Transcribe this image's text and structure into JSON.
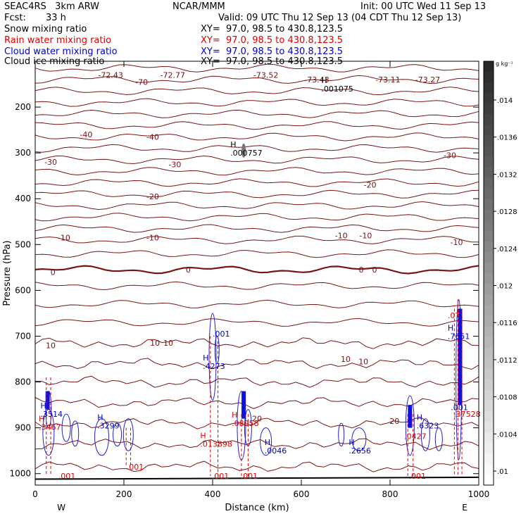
{
  "header": {
    "model": "SEAC4RS   3km ARW",
    "org": "NCAR/MMM",
    "init": "Init: 00 UTC Wed 11 Sep 13",
    "fcst_label": "Fcst:",
    "fcst_value": "33 h",
    "valid": "Valid: 09 UTC Thu 12 Sep 13 (04 CDT Thu 12 Sep 13)"
  },
  "fields": [
    {
      "name": "Snow mixing ratio",
      "xy": "XY=  97.0, 98.5 to 430.8,123.5",
      "color": "#000000"
    },
    {
      "name": "Rain water mixing ratio",
      "xy": "XY=  97.0, 98.5 to 430.8,123.5",
      "color": "#e00000"
    },
    {
      "name": "Cloud water mixing ratio",
      "xy": "XY=  97.0, 98.5 to 430.8,123.5",
      "color": "#0000d0"
    },
    {
      "name": "Cloud ice mixing ratio",
      "xy": "XY=  97.0, 98.5 to 430.8,123.5",
      "color": "#000000"
    }
  ],
  "colorbar": {
    "unit": "g kg⁻¹",
    "labels": [
      ".014",
      ".0136",
      ".0132",
      ".0128",
      ".0124",
      ".012",
      ".0116",
      ".0112",
      ".0108",
      ".0104",
      ".01"
    ]
  },
  "chart_data": {
    "type": "contour",
    "xlabel": "Distance (km)",
    "ylabel": "Pressure (hPa)",
    "xlim": [
      0,
      1000
    ],
    "ylim": [
      1025,
      100
    ],
    "x_ticks": [
      0,
      200,
      400,
      600,
      800,
      1000
    ],
    "y_ticks": [
      200,
      300,
      400,
      500,
      600,
      700,
      800,
      900,
      1000
    ],
    "x_end_labels": {
      "left": "W",
      "right": "E"
    },
    "temperature_labels": [
      {
        "text": "-72.43",
        "x": 170,
        "p": 130
      },
      {
        "text": "-70",
        "x": 240,
        "p": 145
      },
      {
        "text": "-72.77",
        "x": 310,
        "p": 130
      },
      {
        "text": "-73.52",
        "x": 520,
        "p": 130
      },
      {
        "text": "-73.43",
        "x": 635,
        "p": 140
      },
      {
        "text": "-73.11",
        "x": 795,
        "p": 140
      },
      {
        "text": "-73.27",
        "x": 885,
        "p": 140
      },
      {
        "text": "-40",
        "x": 115,
        "p": 260
      },
      {
        "text": "-40",
        "x": 265,
        "p": 265
      },
      {
        "text": "-30",
        "x": 35,
        "p": 320
      },
      {
        "text": "-30",
        "x": 315,
        "p": 325
      },
      {
        "text": "-30",
        "x": 935,
        "p": 305
      },
      {
        "text": "-20",
        "x": 265,
        "p": 395
      },
      {
        "text": "-20",
        "x": 755,
        "p": 370
      },
      {
        "text": "-10",
        "x": 65,
        "p": 485
      },
      {
        "text": "-10",
        "x": 265,
        "p": 485
      },
      {
        "text": "-10",
        "x": 690,
        "p": 480
      },
      {
        "text": "-10",
        "x": 745,
        "p": 480
      },
      {
        "text": "-10",
        "x": 950,
        "p": 495
      },
      {
        "text": "0",
        "x": 40,
        "p": 560
      },
      {
        "text": "0",
        "x": 345,
        "p": 555
      },
      {
        "text": "0",
        "x": 735,
        "p": 555
      },
      {
        "text": "0",
        "x": 765,
        "p": 555
      },
      {
        "text": "10",
        "x": 35,
        "p": 720
      },
      {
        "text": "10",
        "x": 270,
        "p": 715
      },
      {
        "text": "10",
        "x": 300,
        "p": 715
      },
      {
        "text": "10",
        "x": 700,
        "p": 750
      },
      {
        "text": "10",
        "x": 740,
        "p": 755
      },
      {
        "text": "20",
        "x": 500,
        "p": 880
      },
      {
        "text": "20",
        "x": 810,
        "p": 885
      }
    ],
    "extrema": [
      {
        "mark": "H",
        "value": ".001075",
        "x": 645,
        "p": 160,
        "color": "#000000"
      },
      {
        "mark": "H",
        "value": ".000757",
        "x": 440,
        "p": 300,
        "color": "#000000"
      },
      {
        "mark": "H",
        "value": ".3514",
        "x": 12,
        "p": 870,
        "color": "#0000d0"
      },
      {
        "mark": "H",
        "value": ".3299",
        "x": 140,
        "p": 895,
        "color": "#0000d0"
      },
      {
        "mark": "H",
        "value": ".4273",
        "x": 378,
        "p": 765,
        "color": "#0000d0"
      },
      {
        "mark": "",
        "value": ".001",
        "x": 400,
        "p": 695,
        "color": "#0000d0"
      },
      {
        "mark": "H",
        "value": ".08958",
        "x": 443,
        "p": 890,
        "color": "#e00000"
      },
      {
        "mark": "H",
        "value": ".0046",
        "x": 517,
        "p": 950,
        "color": "#0000d0"
      },
      {
        "mark": "H",
        "value": ".2656",
        "x": 707,
        "p": 950,
        "color": "#0000d0"
      },
      {
        "mark": "H",
        "value": ".6323",
        "x": 860,
        "p": 895,
        "color": "#0000d0"
      },
      {
        "mark": "H",
        "value": ".7651",
        "x": 930,
        "p": 700,
        "color": "#0000d0"
      },
      {
        "mark": "",
        "value": ".07",
        "x": 930,
        "p": 655,
        "color": "#e00000"
      },
      {
        "mark": "",
        "value": ".001",
        "x": 937,
        "p": 855,
        "color": "#0000d0"
      },
      {
        "mark": "",
        "value": ".37528",
        "x": 943,
        "p": 870,
        "color": "#e00000"
      },
      {
        "mark": "H",
        "value": ".3467",
        "x": 8,
        "p": 898,
        "color": "#e00000"
      },
      {
        "mark": "H",
        "value": ".013898",
        "x": 372,
        "p": 935,
        "color": "#e00000"
      },
      {
        "mark": "",
        "value": ".0427",
        "x": 832,
        "p": 918,
        "color": "#e00000"
      },
      {
        "mark": "",
        "value": ".001",
        "x": 52,
        "p": 1005,
        "color": "#e00000"
      },
      {
        "mark": "",
        "value": ".001",
        "x": 206,
        "p": 985,
        "color": "#e00000"
      },
      {
        "mark": "",
        "value": ".001",
        "x": 398,
        "p": 1005,
        "color": "#e00000"
      },
      {
        "mark": "",
        "value": ".001",
        "x": 463,
        "p": 1005,
        "color": "#e00000"
      },
      {
        "mark": "",
        "value": ".001",
        "x": 842,
        "p": 1005,
        "color": "#e00000"
      }
    ]
  }
}
